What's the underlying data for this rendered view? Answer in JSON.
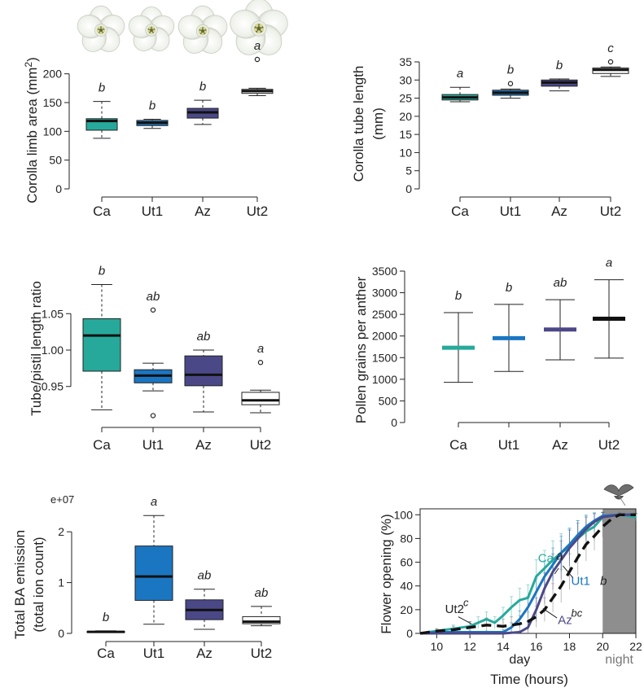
{
  "colors": {
    "Ca": "#26a99b",
    "Ut1": "#1b76c2",
    "Az": "#4b4888",
    "Ut2": "#ffffff",
    "Ut2_line": "#111111",
    "night_shade": "#8e8e8e"
  },
  "chart_data": [
    {
      "id": "corolla_limb",
      "type": "box",
      "ylabel": "Corolla limb area (mm²)",
      "categories": [
        "Ca",
        "Ut1",
        "Az",
        "Ut2"
      ],
      "ylim": [
        0,
        225
      ],
      "yticks": [
        0,
        50,
        100,
        150,
        200
      ],
      "boxes": [
        {
          "min": 88,
          "q1": 102,
          "median": 118,
          "q3": 122,
          "max": 152,
          "outliers": [],
          "letter": "b"
        },
        {
          "min": 105,
          "q1": 110,
          "median": 115,
          "q3": 119,
          "max": 121,
          "outliers": [],
          "letter": "b"
        },
        {
          "min": 112,
          "q1": 123,
          "median": 133,
          "q3": 140,
          "max": 154,
          "outliers": [],
          "letter": "b"
        },
        {
          "min": 162,
          "q1": 166,
          "median": 170,
          "q3": 173,
          "max": 175,
          "outliers": [
            225
          ],
          "letter": "a"
        }
      ],
      "icons": [
        "flower-Ca",
        "flower-Ut1",
        "flower-Az",
        "flower-Ut2"
      ]
    },
    {
      "id": "corolla_tube",
      "type": "box",
      "ylabel": "Corolla tube length (mm)",
      "categories": [
        "Ca",
        "Ut1",
        "Az",
        "Ut2"
      ],
      "ylim": [
        0,
        35
      ],
      "yticks": [
        0,
        5,
        10,
        15,
        20,
        25,
        30,
        35
      ],
      "boxes": [
        {
          "min": 24,
          "q1": 24.5,
          "median": 25.2,
          "q3": 26,
          "max": 28,
          "outliers": [],
          "letter": "a"
        },
        {
          "min": 25,
          "q1": 25.8,
          "median": 26.5,
          "q3": 27.2,
          "max": 27.5,
          "outliers": [
            29
          ],
          "letter": "b"
        },
        {
          "min": 27,
          "q1": 28.3,
          "median": 29.3,
          "q3": 30,
          "max": 30.3,
          "outliers": [],
          "letter": "b"
        },
        {
          "min": 31,
          "q1": 31.8,
          "median": 32.8,
          "q3": 33.3,
          "max": 33.6,
          "outliers": [
            35
          ],
          "letter": "c"
        }
      ]
    },
    {
      "id": "tube_pistil",
      "type": "box",
      "ylabel": "Tube/pistil length ratio",
      "categories": [
        "Ca",
        "Ut1",
        "Az",
        "Ut2"
      ],
      "ylim": [
        0.905,
        1.095
      ],
      "yticks": [
        0.95,
        1.0,
        1.05
      ],
      "yticklabels": [
        "0.95",
        "1.00",
        "1.05"
      ],
      "boxes": [
        {
          "min": 0.918,
          "q1": 0.971,
          "median": 1.02,
          "q3": 1.043,
          "max": 1.09,
          "outliers": [],
          "letter": "b"
        },
        {
          "min": 0.944,
          "q1": 0.955,
          "median": 0.965,
          "q3": 0.973,
          "max": 0.982,
          "outliers": [
            1.055,
            0.91
          ],
          "letter": "ab"
        },
        {
          "min": 0.915,
          "q1": 0.951,
          "median": 0.966,
          "q3": 0.992,
          "max": 1.0,
          "outliers": [],
          "letter": "ab"
        },
        {
          "min": 0.914,
          "q1": 0.925,
          "median": 0.931,
          "q3": 0.942,
          "max": 0.945,
          "outliers": [
            0.983
          ],
          "letter": "a"
        }
      ]
    },
    {
      "id": "pollen",
      "type": "errorbar",
      "ylabel": "Pollen grains per anther",
      "categories": [
        "Ca",
        "Ut1",
        "Az",
        "Ut2"
      ],
      "ylim": [
        0,
        3500
      ],
      "yticks": [
        0,
        500,
        1000,
        1500,
        2000,
        2500,
        3000,
        3500
      ],
      "points": [
        {
          "mean": 1730,
          "low": 930,
          "high": 2540,
          "letter": "b"
        },
        {
          "mean": 1950,
          "low": 1180,
          "high": 2730,
          "letter": "b"
        },
        {
          "mean": 2150,
          "low": 1450,
          "high": 2840,
          "letter": "ab"
        },
        {
          "mean": 2400,
          "low": 1490,
          "high": 3300,
          "letter": "a"
        }
      ]
    },
    {
      "id": "ba_emission",
      "type": "box",
      "ylabel_lines": [
        "Total BA emission",
        "(total ion count)"
      ],
      "exponent_label": "e+07",
      "categories": [
        "Ca",
        "Ut1",
        "Az",
        "Ut2"
      ],
      "ylim": [
        0,
        2.5
      ],
      "yticks": [
        0,
        1,
        2
      ],
      "boxes": [
        {
          "min": 0.02,
          "q1": 0.02,
          "median": 0.03,
          "q3": 0.04,
          "max": 0.05,
          "outliers": [],
          "letter": "b"
        },
        {
          "min": 0.18,
          "q1": 0.65,
          "median": 1.12,
          "q3": 1.72,
          "max": 2.32,
          "outliers": [],
          "letter": "a"
        },
        {
          "min": 0.08,
          "q1": 0.27,
          "median": 0.46,
          "q3": 0.66,
          "max": 0.87,
          "outliers": [],
          "letter": "ab"
        },
        {
          "min": 0.15,
          "q1": 0.19,
          "median": 0.23,
          "q3": 0.33,
          "max": 0.53,
          "outliers": [],
          "letter": "ab"
        }
      ]
    },
    {
      "id": "flower_opening",
      "type": "line",
      "ylabel": "Flower opening (%)",
      "xlabel": "Time (hours)",
      "xlim": [
        9,
        22
      ],
      "ylim": [
        0,
        105
      ],
      "xticks": [
        10,
        12,
        14,
        16,
        18,
        20,
        22
      ],
      "yticks": [
        0,
        20,
        40,
        60,
        80,
        100
      ],
      "period_labels": {
        "day": "day",
        "night": "night"
      },
      "night_start": 20,
      "series": [
        {
          "name": "Ca",
          "letter": "a",
          "style": "solid",
          "x": [
            9,
            10,
            11,
            12,
            12.5,
            13,
            13.5,
            14,
            14.5,
            15,
            15.5,
            16,
            16.5,
            17,
            17.5,
            18,
            18.5,
            19,
            19.5,
            20,
            21,
            22
          ],
          "y": [
            0,
            2,
            4,
            6,
            9,
            12,
            9,
            15,
            22,
            28,
            30,
            48,
            55,
            62,
            68,
            73,
            80,
            86,
            90,
            98,
            100,
            98
          ],
          "err": [
            0,
            2,
            3,
            4,
            5,
            6,
            5,
            7,
            9,
            10,
            11,
            14,
            15,
            16,
            16,
            16,
            15,
            14,
            12,
            4,
            2,
            3
          ]
        },
        {
          "name": "Ut1",
          "letter": "",
          "style": "solid",
          "x": [
            9,
            10,
            11,
            12,
            13,
            14,
            14.5,
            15,
            15.5,
            16,
            16.5,
            17,
            17.5,
            18,
            18.5,
            19,
            19.5,
            20,
            21,
            22
          ],
          "y": [
            0,
            1,
            1,
            1,
            1,
            1,
            5,
            12,
            22,
            35,
            48,
            58,
            68,
            75,
            83,
            90,
            95,
            99,
            100,
            100
          ],
          "err": [
            0,
            1,
            1,
            1,
            1,
            2,
            4,
            7,
            9,
            11,
            13,
            14,
            14,
            13,
            12,
            9,
            6,
            3,
            1,
            1
          ]
        },
        {
          "name": "Az",
          "letter": "bc",
          "style": "solid",
          "x": [
            9,
            10,
            11,
            12,
            13,
            14,
            15,
            15.5,
            16,
            16.5,
            17,
            17.5,
            18,
            18.5,
            19,
            19.5,
            20,
            21,
            22
          ],
          "y": [
            0,
            0,
            0,
            0,
            0,
            0,
            1,
            5,
            20,
            38,
            52,
            62,
            72,
            80,
            88,
            94,
            98,
            100,
            100
          ],
          "err": [
            0,
            0,
            0,
            0,
            0,
            0,
            1,
            5,
            10,
            13,
            15,
            16,
            15,
            13,
            10,
            7,
            4,
            2,
            1
          ]
        },
        {
          "name": "Ut2",
          "letter": "c",
          "style": "dashed",
          "x": [
            9,
            10,
            11,
            12,
            13,
            14,
            14.5,
            15,
            15.5,
            16,
            16.5,
            17,
            17.5,
            18,
            18.5,
            19,
            19.5,
            20,
            20.5,
            21,
            22
          ],
          "y": [
            0,
            2,
            3,
            5,
            7,
            6,
            7,
            8,
            10,
            14,
            20,
            30,
            40,
            52,
            64,
            75,
            82,
            90,
            96,
            100,
            100
          ],
          "err": [
            0,
            2,
            3,
            5,
            6,
            6,
            7,
            7,
            8,
            9,
            10,
            12,
            14,
            15,
            15,
            14,
            12,
            9,
            5,
            2,
            1
          ]
        }
      ],
      "group_letter": "b"
    }
  ]
}
